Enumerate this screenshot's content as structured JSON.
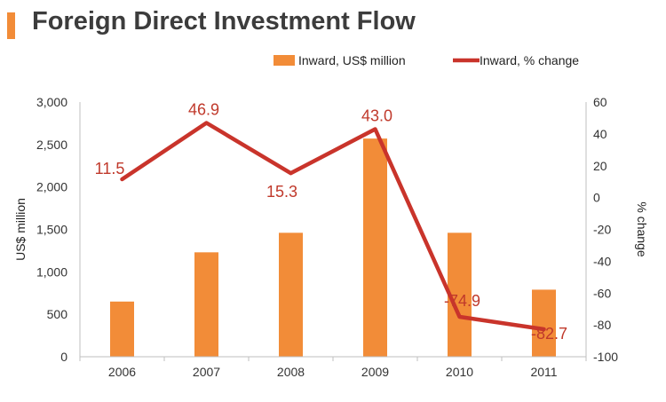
{
  "header": {
    "title": "Foreign Direct Investment Flow"
  },
  "chart_data": {
    "type": "bar+line",
    "title": "Foreign Direct Investment Flow",
    "categories": [
      "2006",
      "2007",
      "2008",
      "2009",
      "2010",
      "2011"
    ],
    "ylabel": "US$ million",
    "y2label": "% change",
    "ylim": [
      0,
      3000
    ],
    "y2lim": [
      -100,
      60
    ],
    "yticks": [
      "0",
      "500",
      "1,000",
      "1,500",
      "2,000",
      "2,500",
      "3,000"
    ],
    "y2ticks": [
      "-100",
      "-80",
      "-60",
      "-40",
      "-20",
      "0",
      "20",
      "40",
      "60"
    ],
    "legend_position": "top-right",
    "series": [
      {
        "name": "Inward, US$ million",
        "type": "bar",
        "axis": "left",
        "color": "#f28c38",
        "values": [
          650,
          1230,
          1460,
          2570,
          1460,
          790
        ]
      },
      {
        "name": "Inward, % change",
        "type": "line",
        "axis": "right",
        "color": "#c9342b",
        "values": [
          11.5,
          46.9,
          15.3,
          43.0,
          -74.9,
          -82.7
        ],
        "labels": [
          "11.5",
          "46.9",
          "15.3",
          "43.0",
          "-74.9",
          "-82.7"
        ]
      }
    ]
  }
}
